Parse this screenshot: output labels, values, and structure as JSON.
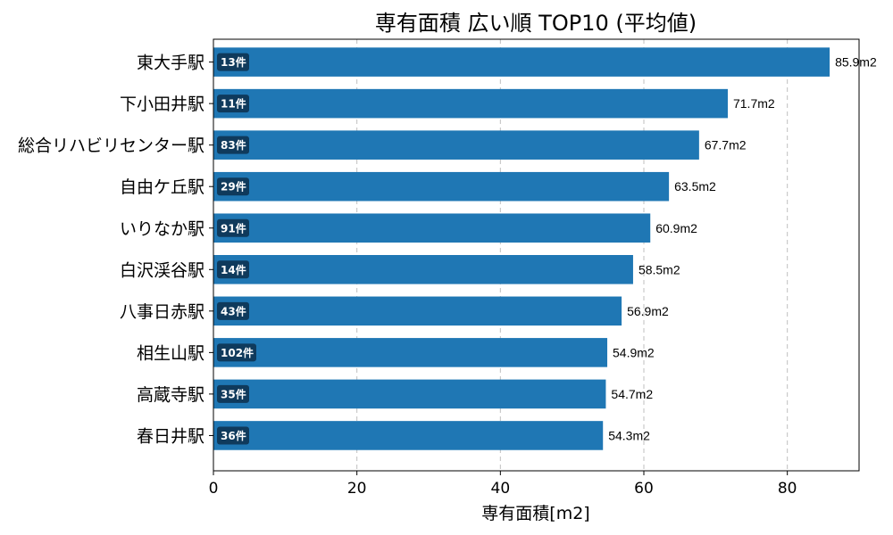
{
  "chart_data": {
    "type": "bar",
    "orientation": "horizontal",
    "title": "専有面積 広い順 TOP10 (平均値)",
    "xlabel": "専有面積[m2]",
    "ylabel": "",
    "xlim": [
      0,
      90
    ],
    "xticks": [
      0,
      20,
      40,
      60,
      80
    ],
    "grid": "x-dashed",
    "bar_color": "#1f77b4",
    "count_badge_color": "#0f3a5c",
    "value_suffix": "m2",
    "categories": [
      "東大手駅",
      "下小田井駅",
      "総合リハビリセンター駅",
      "自由ケ丘駅",
      "いりなか駅",
      "白沢渓谷駅",
      "八事日赤駅",
      "相生山駅",
      "高蔵寺駅",
      "春日井駅"
    ],
    "values": [
      85.9,
      71.7,
      67.7,
      63.5,
      60.9,
      58.5,
      56.9,
      54.9,
      54.7,
      54.3
    ],
    "value_labels": [
      "85.9m2",
      "71.7m2",
      "67.7m2",
      "63.5m2",
      "60.9m2",
      "58.5m2",
      "56.9m2",
      "54.9m2",
      "54.7m2",
      "54.3m2"
    ],
    "counts": [
      "13件",
      "11件",
      "83件",
      "29件",
      "91件",
      "14件",
      "43件",
      "102件",
      "35件",
      "36件"
    ]
  }
}
